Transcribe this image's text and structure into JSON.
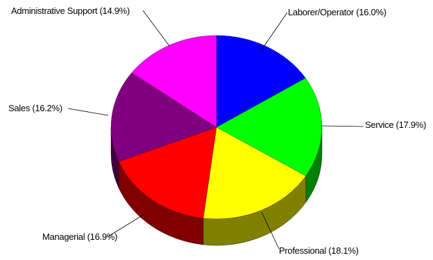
{
  "chart_data": {
    "type": "pie",
    "style": "3d",
    "title": "",
    "slices": [
      {
        "label": "Laborer/Operator",
        "value": 16.0,
        "display": "Laborer/Operator (16.0%)",
        "color": "#0000ff"
      },
      {
        "label": "Service",
        "value": 17.9,
        "display": "Service (17.9%)",
        "color": "#00ff00"
      },
      {
        "label": "Professional",
        "value": 18.1,
        "display": "Professional (18.1%)",
        "color": "#ffff00"
      },
      {
        "label": "Managerial",
        "value": 16.9,
        "display": "Managerial (16.9%)",
        "color": "#ff0000"
      },
      {
        "label": "Sales",
        "value": 16.2,
        "display": "Sales (16.2%)",
        "color": "#800080"
      },
      {
        "label": "Administrative Support",
        "value": 14.9,
        "display": "Administrative Support (14.9%)",
        "color": "#ff00ff"
      }
    ]
  }
}
